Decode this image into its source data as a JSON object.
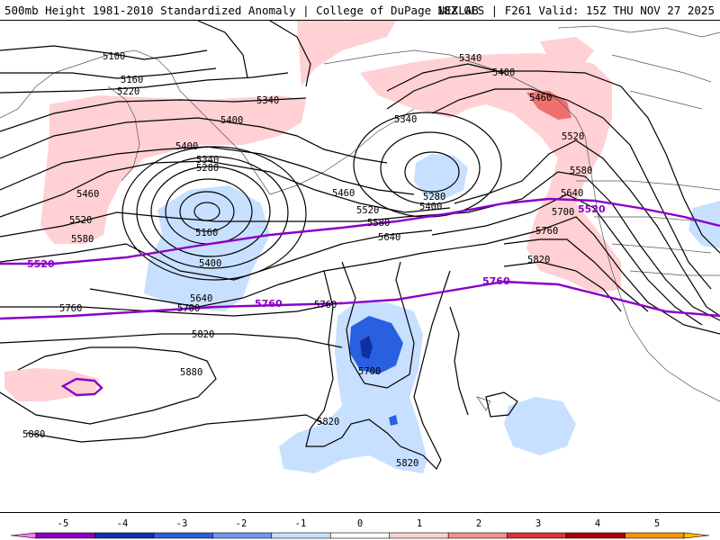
{
  "header": {
    "title": "500mb Height 1981-2010 Standardized Anomaly | College of DuPage NEXLAB",
    "valid": "18Z GFS | F261 Valid: 15Z THU NOV 27 2025"
  },
  "contour_labels": {
    "l5100": "5100",
    "l5160a": "5160",
    "l5220": "5220",
    "l5340a": "5340",
    "l5400a": "5400",
    "l5400b": "5400",
    "l5340b": "5340",
    "l5280a": "5280",
    "l5460a": "5460",
    "l5520a": "5520",
    "l5580a": "5580",
    "l5160b": "5160",
    "l5400c": "5400",
    "l5640a": "5640",
    "l5700a": "5700",
    "l5760a": "5760",
    "l5760b": "5760",
    "l5820a": "5820",
    "l5880a": "5880",
    "l5880b": "5880",
    "l5340c": "5340",
    "l5280b": "5280",
    "l5400d": "5400",
    "l5460b": "5460",
    "l5520b": "5520",
    "l5580b": "5580",
    "l5640b": "5640",
    "l5700b": "5700",
    "l5820b": "5820",
    "l5820c": "5820",
    "l5340d": "5340",
    "l5400e": "5400",
    "l5460c": "5460",
    "l5520c": "5520",
    "l5580c": "5580",
    "l5640c": "5640",
    "l5700c": "5700",
    "l5760c": "5760",
    "l5820d": "5820"
  },
  "reference_lines": {
    "p5520a": "5520",
    "p5520b": "5520",
    "p5760a": "5760",
    "p5760b": "5760"
  },
  "colorbar": {
    "ticks": [
      "-5",
      "-4",
      "-3",
      "-2",
      "-1",
      "0",
      "1",
      "2",
      "3",
      "4",
      "5"
    ],
    "colors": [
      "#f080f0",
      "#9000c8",
      "#1030b0",
      "#2860e0",
      "#7098f0",
      "#c8e0ff",
      "#ffffff",
      "#ffd0d0",
      "#f09090",
      "#e03030",
      "#b00000",
      "#ff9000",
      "#ffc000"
    ]
  },
  "colors": {
    "positive_light": "#ffd0d4",
    "positive_mid": "#f07070",
    "negative_light": "#c8e0ff",
    "negative_mid": "#2860e0",
    "negative_dark": "#1030a0",
    "reference_line": "#8a00c8"
  }
}
